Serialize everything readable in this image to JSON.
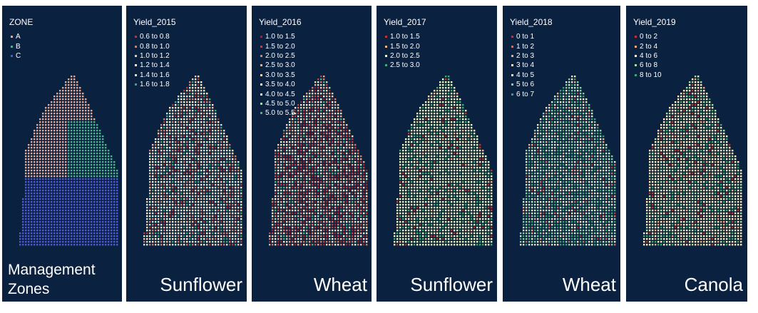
{
  "panels": [
    {
      "title": "ZONE",
      "caption": "Management Zones",
      "legend": [
        {
          "label": "A",
          "color": "#e7a892"
        },
        {
          "label": "B",
          "color": "#4bb28c"
        },
        {
          "label": "C",
          "color": "#5057d8"
        }
      ]
    },
    {
      "title": "Yield_2015",
      "caption": "Sunflower",
      "legend": [
        {
          "label": "0.6 to 0.8",
          "color": "#b23a3a"
        },
        {
          "label": "0.8 to 1.0",
          "color": "#dc7c62"
        },
        {
          "label": "1.0 to 1.2",
          "color": "#f4c49a"
        },
        {
          "label": "1.2 to 1.4",
          "color": "#fdf0c8"
        },
        {
          "label": "1.4 to 1.6",
          "color": "#cfead0"
        },
        {
          "label": "1.6 to 1.8",
          "color": "#3fa57a"
        }
      ]
    },
    {
      "title": "Yield_2016",
      "caption": "Wheat",
      "legend": [
        {
          "label": "1.0 to 1.5",
          "color": "#9c2433"
        },
        {
          "label": "1.5 to 2.0",
          "color": "#c33f44"
        },
        {
          "label": "2.0 to 2.5",
          "color": "#dd7a5e"
        },
        {
          "label": "2.5 to 3.0",
          "color": "#eeab82"
        },
        {
          "label": "3.0 to 3.5",
          "color": "#f7d4a8"
        },
        {
          "label": "3.5 to 4.0",
          "color": "#fcf0c6"
        },
        {
          "label": "4.0 to 4.5",
          "color": "#e2f2c8"
        },
        {
          "label": "4.5 to 5.0",
          "color": "#a8dcae"
        },
        {
          "label": "5.0 to 5.5",
          "color": "#4fae80"
        }
      ]
    },
    {
      "title": "Yield_2017",
      "caption": "Sunflower",
      "legend": [
        {
          "label": "1.0 to 1.5",
          "color": "#b23a3a"
        },
        {
          "label": "1.5 to 2.0",
          "color": "#f0b48a"
        },
        {
          "label": "2.0 to 2.5",
          "color": "#eaf6c8"
        },
        {
          "label": "2.5 to 3.0",
          "color": "#46a87c"
        }
      ]
    },
    {
      "title": "Yield_2018",
      "caption": "Wheat",
      "legend": [
        {
          "label": "0 to 1",
          "color": "#b23a3a"
        },
        {
          "label": "1 to 2",
          "color": "#d8695a"
        },
        {
          "label": "2 to 3",
          "color": "#eeab82"
        },
        {
          "label": "3 to 4",
          "color": "#fbe6b8"
        },
        {
          "label": "4 to 5",
          "color": "#d6eec8"
        },
        {
          "label": "5 to 6",
          "color": "#8ccca0"
        },
        {
          "label": "6 to 7",
          "color": "#3a9e76"
        }
      ]
    },
    {
      "title": "Yield_2019",
      "caption": "Canola",
      "legend": [
        {
          "label": "0 to 2",
          "color": "#b23a3a"
        },
        {
          "label": "2 to 4",
          "color": "#eeab82"
        },
        {
          "label": "4 to 6",
          "color": "#fcf0c6"
        },
        {
          "label": "6 to 8",
          "color": "#a8dcae"
        },
        {
          "label": "8 to 10",
          "color": "#3fa57a"
        }
      ]
    }
  ]
}
